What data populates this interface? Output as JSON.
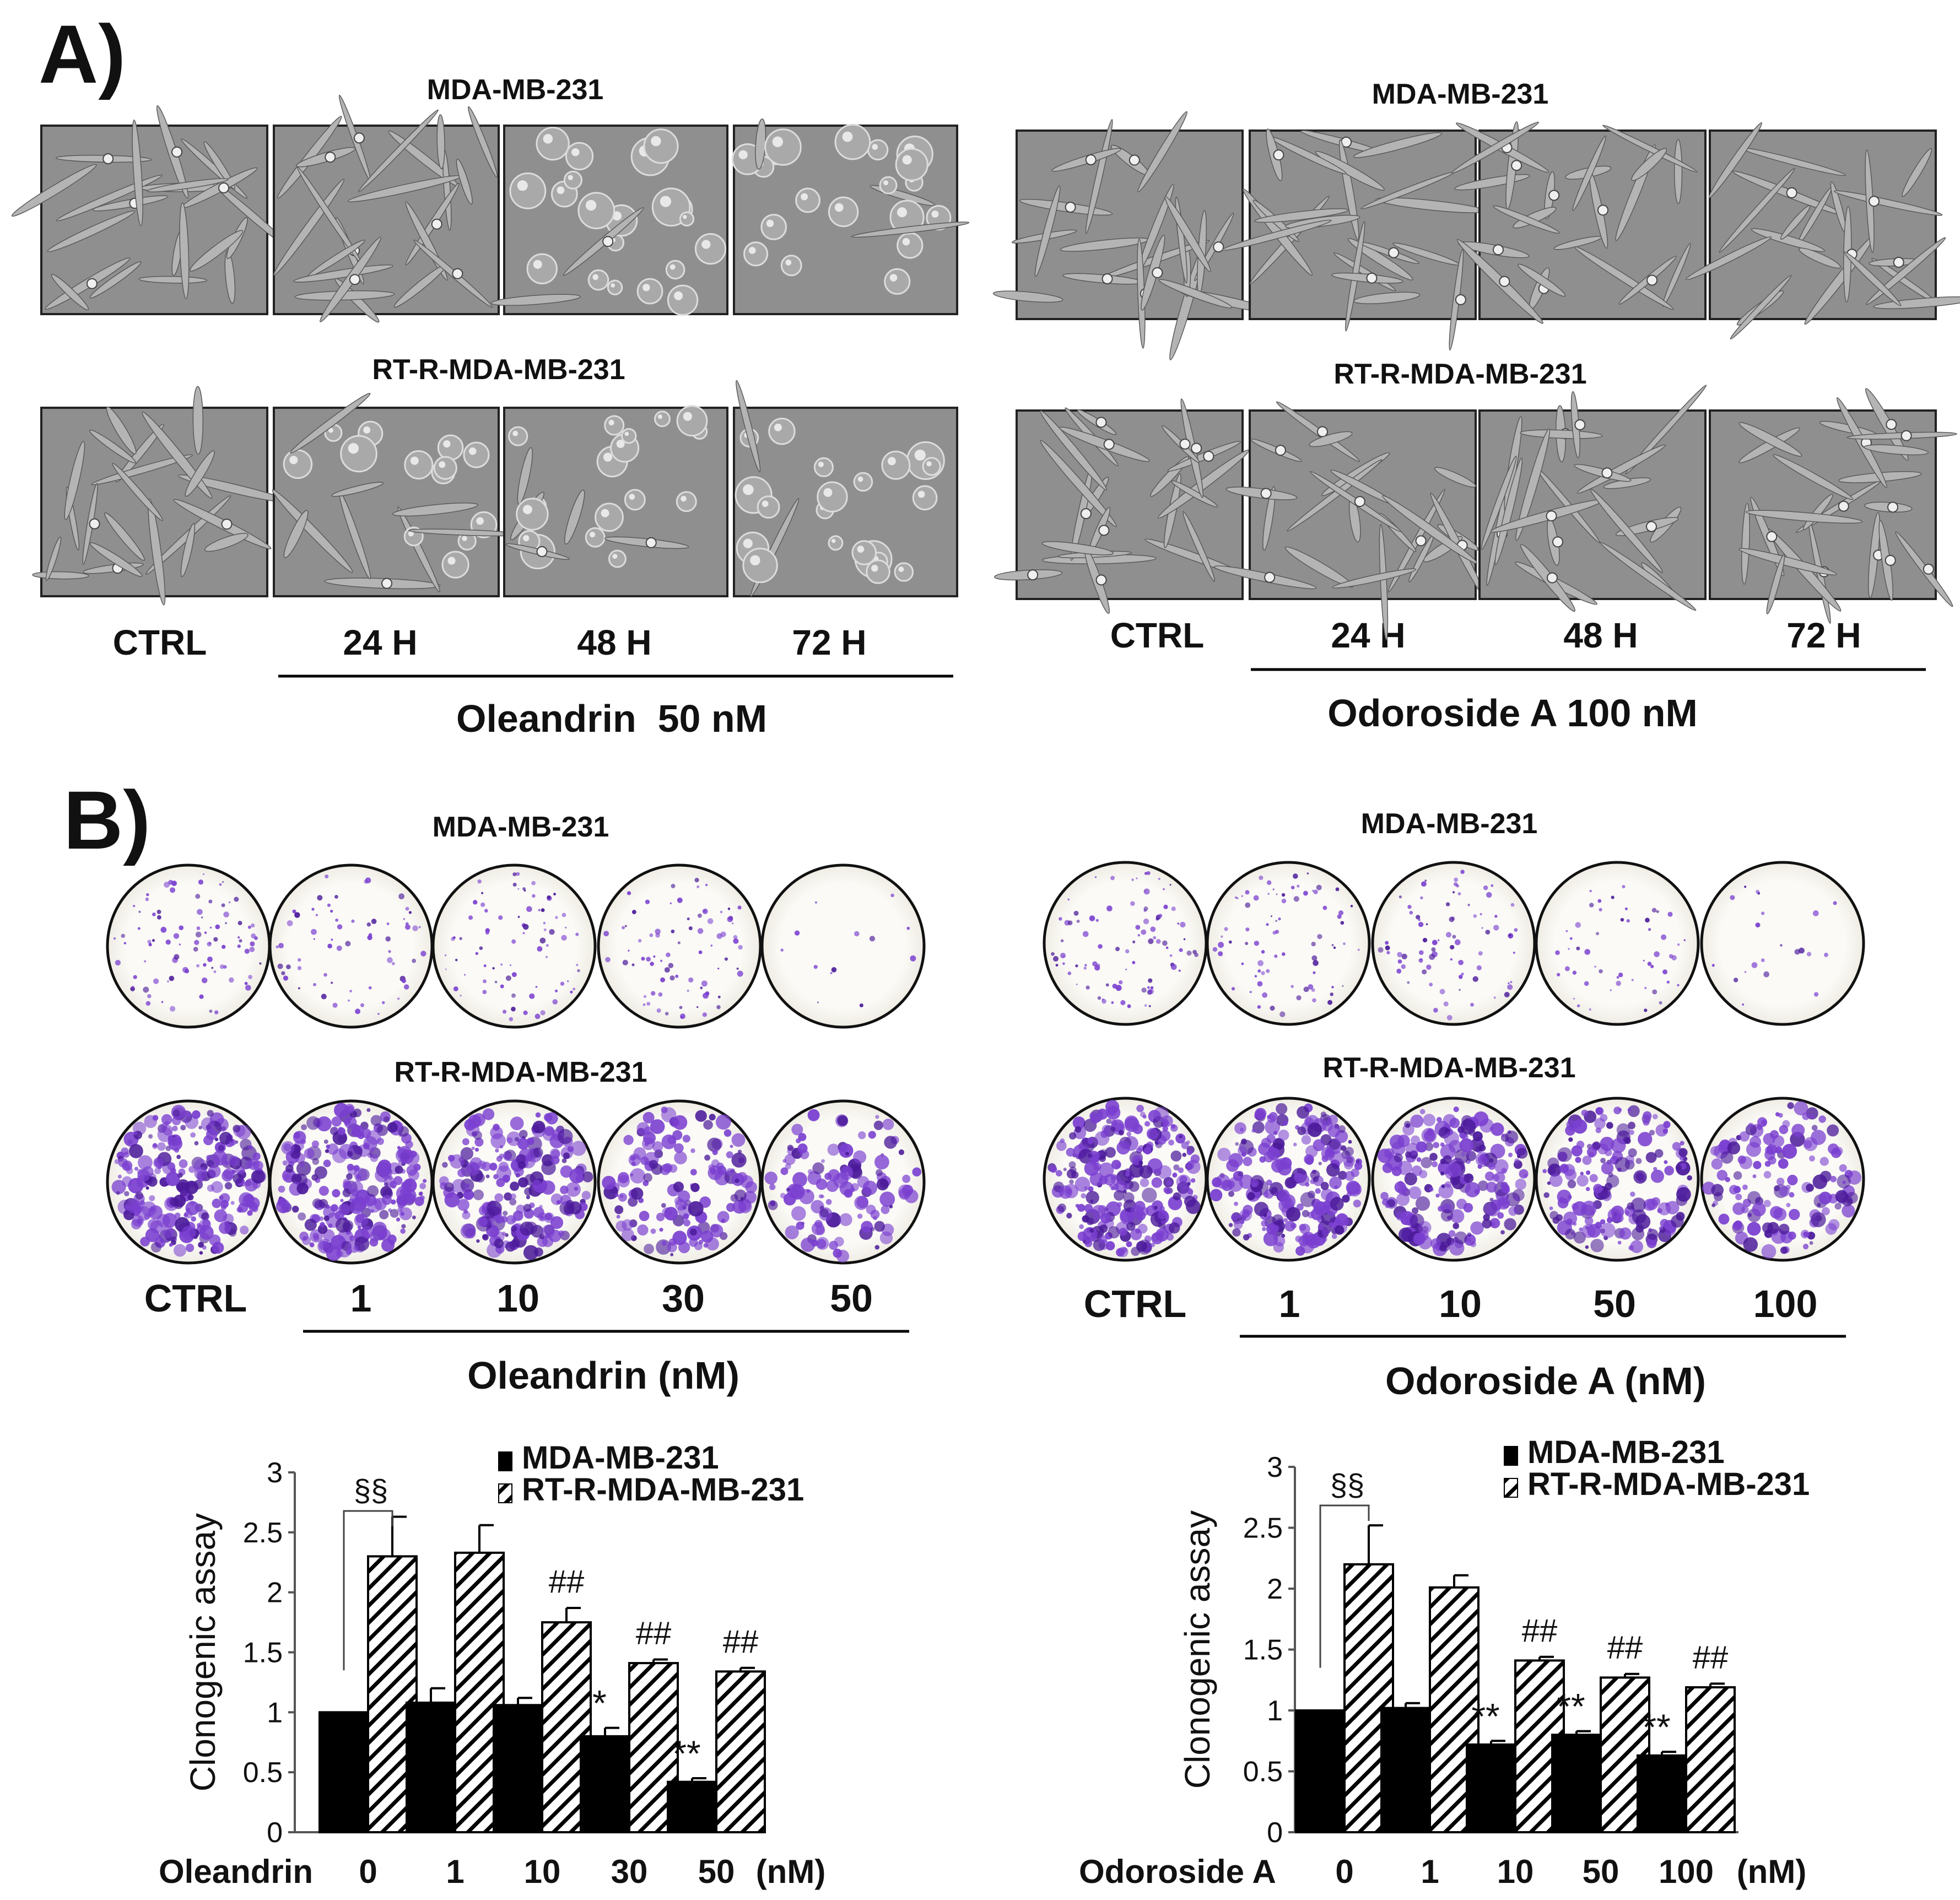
{
  "panel_a": {
    "letter": "A)",
    "left": {
      "rows": [
        {
          "cell_line": "MDA-MB-231",
          "treated_morphology": [
            "elongated",
            "elongated",
            "rounded",
            "rounded"
          ]
        },
        {
          "cell_line": "RT-R-MDA-MB-231",
          "treated_morphology": [
            "elongated",
            "rounded",
            "rounded",
            "rounded"
          ]
        }
      ],
      "col_labels": [
        "CTRL",
        "24 H",
        "48 H",
        "72 H"
      ],
      "treatment": "Oleandrin  50 nM"
    },
    "right": {
      "rows": [
        {
          "cell_line": "MDA-MB-231",
          "treated_morphology": [
            "elongated",
            "elongated",
            "elongated",
            "elongated"
          ]
        },
        {
          "cell_line": "RT-R-MDA-MB-231",
          "treated_morphology": [
            "elongated",
            "elongated",
            "elongated",
            "elongated"
          ]
        }
      ],
      "col_labels": [
        "CTRL",
        "24 H",
        "48 H",
        "72 H"
      ],
      "treatment": "Odoroside A 100 nM"
    }
  },
  "panel_b": {
    "letter": "B)",
    "left": {
      "rows": [
        {
          "cell_line": "MDA-MB-231",
          "colony_density": [
            0.35,
            0.25,
            0.3,
            0.3,
            0.05
          ]
        },
        {
          "cell_line": "RT-R-MDA-MB-231",
          "colony_density": [
            1.0,
            1.0,
            0.85,
            0.55,
            0.45
          ]
        }
      ],
      "col_labels": [
        "CTRL",
        "1",
        "10",
        "30",
        "50"
      ],
      "treatment": "Oleandrin (nM)"
    },
    "right": {
      "rows": [
        {
          "cell_line": "MDA-MB-231",
          "colony_density": [
            0.35,
            0.3,
            0.3,
            0.2,
            0.08
          ]
        },
        {
          "cell_line": "RT-R-MDA-MB-231",
          "colony_density": [
            1.0,
            0.9,
            0.8,
            0.7,
            0.55
          ]
        }
      ],
      "col_labels": [
        "CTRL",
        "1",
        "10",
        "50",
        "100"
      ],
      "treatment": "Odoroside A (nM)"
    }
  },
  "colors": {
    "micrograph_bg": "#8f8f8f",
    "micrograph_border": "#222222",
    "colony": "#7a3fd0",
    "colony_dark": "#4b1a9a",
    "plate_bg": "#fbfaf6",
    "bar_solid": "#000000"
  },
  "chart_data": [
    {
      "type": "bar",
      "categories": [
        "0",
        "1",
        "10",
        "30",
        "50"
      ],
      "x_title": "Oleandrin",
      "x_unit": "(nM)",
      "ylabel": "Clonogenic assay",
      "ylim": [
        0,
        3
      ],
      "yticks": [
        "0",
        "0.5",
        "1",
        "1.5",
        "2",
        "2.5",
        "3"
      ],
      "series": [
        {
          "name": "MDA-MB-231",
          "fill": "solid",
          "values": [
            1.0,
            1.08,
            1.06,
            0.8,
            0.42
          ],
          "errors": [
            0,
            0.12,
            0.06,
            0.07,
            0.03
          ],
          "marks": [
            "",
            "",
            "",
            "*",
            "**"
          ]
        },
        {
          "name": "RT-R-MDA-MB-231",
          "fill": "hatch",
          "values": [
            2.3,
            2.33,
            1.75,
            1.41,
            1.34
          ],
          "errors": [
            0.33,
            0.23,
            0.12,
            0.03,
            0.03
          ],
          "marks": [
            "",
            "",
            "##",
            "##",
            "##"
          ]
        }
      ],
      "bracket_label": "§§",
      "legend_position": "top-right"
    },
    {
      "type": "bar",
      "categories": [
        "0",
        "1",
        "10",
        "50",
        "100"
      ],
      "x_title": "Odoroside A",
      "x_unit": "(nM)",
      "ylabel": "Clonogenic assay",
      "ylim": [
        0,
        3
      ],
      "yticks": [
        "0",
        "0.5",
        "1",
        "1.5",
        "2",
        "2.5",
        "3"
      ],
      "series": [
        {
          "name": "MDA-MB-231",
          "fill": "solid",
          "values": [
            1.0,
            1.02,
            0.72,
            0.8,
            0.63
          ],
          "errors": [
            0,
            0.04,
            0.03,
            0.03,
            0.03
          ],
          "marks": [
            "",
            "",
            "**",
            "**",
            "**"
          ]
        },
        {
          "name": "RT-R-MDA-MB-231",
          "fill": "hatch",
          "values": [
            2.2,
            2.01,
            1.41,
            1.27,
            1.19
          ],
          "errors": [
            0.32,
            0.1,
            0.03,
            0.03,
            0.03
          ],
          "marks": [
            "",
            "",
            "##",
            "##",
            "##"
          ]
        }
      ],
      "bracket_label": "§§",
      "legend_position": "top-right"
    }
  ]
}
